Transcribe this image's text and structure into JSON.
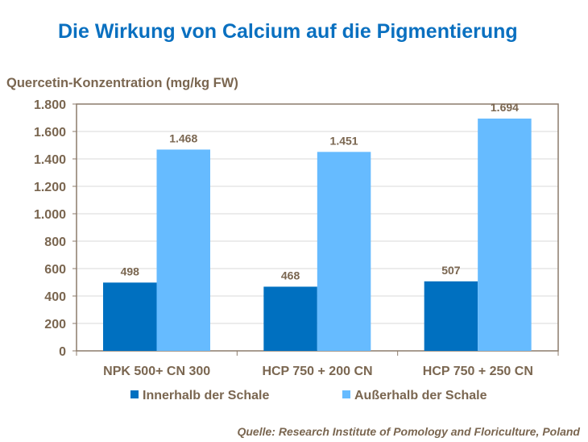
{
  "chart_data": {
    "type": "bar",
    "title": "Die Wirkung von Calcium auf die Pigmentierung",
    "ylabel": "Quercetin-Konzentration (mg/kg FW)",
    "xlabel": "",
    "categories": [
      "NPK 500+ CN 300",
      "HCP 750 + 200 CN",
      "HCP 750 + 250 CN"
    ],
    "series": [
      {
        "name": "Innerhalb der Schale",
        "values": [
          498,
          468,
          507
        ],
        "labels": [
          "498",
          "468",
          "507"
        ],
        "color": "#0070c0"
      },
      {
        "name": "Außerhalb der Schale",
        "values": [
          1468,
          1451,
          1694
        ],
        "labels": [
          "1.468",
          "1.451",
          "1.694"
        ],
        "color": "#66bbff"
      }
    ],
    "ylim": [
      0,
      1800
    ],
    "yticks": [
      0,
      200,
      400,
      600,
      800,
      1000,
      1200,
      1400,
      1600,
      1800
    ],
    "ytick_labels": [
      "0",
      "200",
      "400",
      "600",
      "800",
      "1.000",
      "1.200",
      "1.400",
      "1.600",
      "1.800"
    ],
    "grid": true,
    "legend": "bottom"
  },
  "source": "Quelle: Research Institute of Pomology and Floriculture, Poland"
}
